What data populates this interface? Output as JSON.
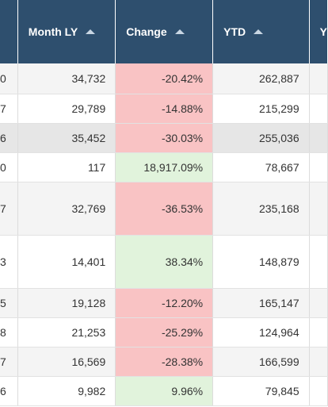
{
  "headers": {
    "first": "",
    "month_ly": "Month LY",
    "change": "Change",
    "ytd": "YTD",
    "last": "Y"
  },
  "rows": [
    {
      "first": "0",
      "month_ly": "34,732",
      "change": "-20.42%",
      "ytd": "262,887",
      "change_status": "negative"
    },
    {
      "first": "7",
      "month_ly": "29,789",
      "change": "-14.88%",
      "ytd": "215,299",
      "change_status": "negative"
    },
    {
      "first": "6",
      "month_ly": "35,452",
      "change": "-30.03%",
      "ytd": "255,036",
      "change_status": "negative"
    },
    {
      "first": "0",
      "month_ly": "117",
      "change": "18,917.09%",
      "ytd": "78,667",
      "change_status": "positive"
    },
    {
      "first": "7",
      "month_ly": "32,769",
      "change": "-36.53%",
      "ytd": "235,168",
      "change_status": "negative"
    },
    {
      "first": "3",
      "month_ly": "14,401",
      "change": "38.34%",
      "ytd": "148,879",
      "change_status": "positive"
    },
    {
      "first": "5",
      "month_ly": "19,128",
      "change": "-12.20%",
      "ytd": "165,147",
      "change_status": "negative"
    },
    {
      "first": "8",
      "month_ly": "21,253",
      "change": "-25.29%",
      "ytd": "124,964",
      "change_status": "negative"
    },
    {
      "first": "7",
      "month_ly": "16,569",
      "change": "-28.38%",
      "ytd": "166,599",
      "change_status": "negative"
    },
    {
      "first": "6",
      "month_ly": "9,982",
      "change": "9.96%",
      "ytd": "79,845",
      "change_status": "positive"
    }
  ],
  "colors": {
    "header_bg": "#2e4f6e",
    "negative_bg": "#f9c3c4",
    "positive_bg": "#e1f3dc"
  }
}
